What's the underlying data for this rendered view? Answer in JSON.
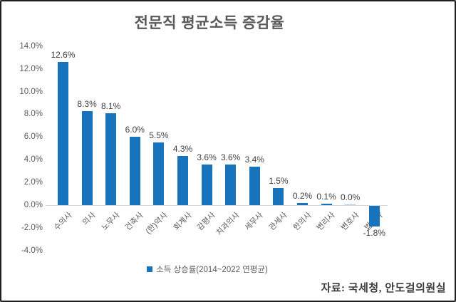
{
  "title": "전문직 평균소득 증감율",
  "legend": {
    "label": "소득 상승률(2014~2022 연평균)",
    "marker_color": "#1774bc"
  },
  "source": "자료: 국세청, 안도걸의원실",
  "colors": {
    "bar": "#1774bc",
    "bar_zero": "#a9c9e6",
    "axis_line": "#d6d6d6",
    "title_text": "#595959",
    "tick_text": "#595959",
    "value_text": "#3f3f3f"
  },
  "chart_data": {
    "type": "bar",
    "title": "전문직 평균소득 증감율",
    "categories": [
      "수의사",
      "의사",
      "노무사",
      "건축사",
      "(한)약사",
      "회계사",
      "감평사",
      "치과의사",
      "세무사",
      "관세사",
      "한의사",
      "변리사",
      "변호사",
      "법무사"
    ],
    "values": [
      12.6,
      8.3,
      8.1,
      6.0,
      5.5,
      4.3,
      3.6,
      3.6,
      3.4,
      1.5,
      0.2,
      0.1,
      0.0,
      -1.8
    ],
    "value_labels": [
      "12.6%",
      "8.3%",
      "8.1%",
      "6.0%",
      "5.5%",
      "4.3%",
      "3.6%",
      "3.6%",
      "3.4%",
      "1.5%",
      "0.2%",
      "0.1%",
      "0.0%",
      "-1.8%"
    ],
    "y_ticks": [
      14,
      12,
      10,
      8,
      6,
      4,
      2,
      0,
      -2,
      -4
    ],
    "y_tick_labels": [
      "14.0%",
      "12.0%",
      "10.0%",
      "8.0%",
      "6.0%",
      "4.0%",
      "2.0%",
      "0.0%",
      "-2.0%",
      "-4.0%"
    ],
    "ylim": [
      -4,
      14
    ],
    "xlabel": "",
    "ylabel": "",
    "grid": false,
    "legend_position": "bottom",
    "legend_entries": [
      "소득 상승률(2014~2022 연평균)"
    ],
    "unit": "%"
  }
}
